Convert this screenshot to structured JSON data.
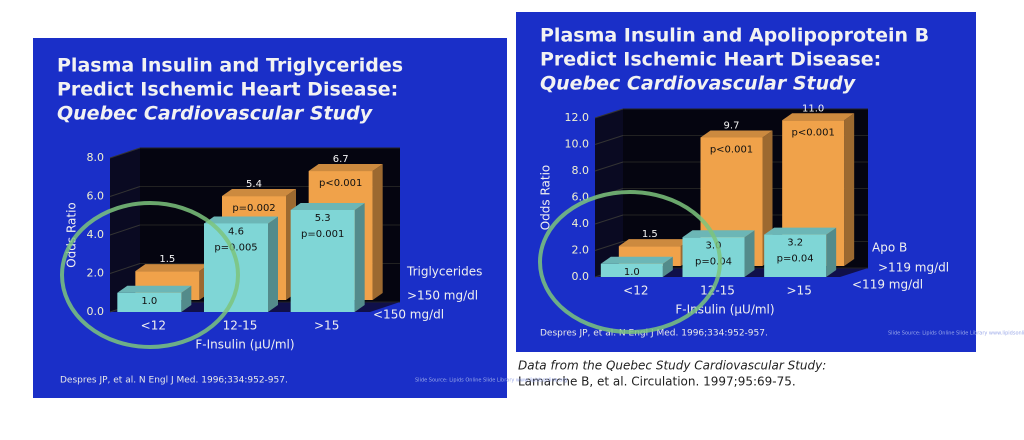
{
  "chart_data": [
    {
      "type": "bar",
      "title_lines": [
        "Plasma Insulin and Triglycerides",
        "Predict Ischemic Heart Disease:"
      ],
      "subtitle": "Quebec Cardiovascular Study",
      "categories": [
        "<12",
        "12-15",
        ">15"
      ],
      "x_label": "F-Insulin (µU/ml)",
      "y_label": "Odds Ratio",
      "ylim": [
        0,
        8
      ],
      "yticks": [
        {
          "value": 0,
          "label": "0.0"
        },
        {
          "value": 2,
          "label": "2.0"
        },
        {
          "value": 4,
          "label": "4.0"
        },
        {
          "value": 6,
          "label": "6.0"
        },
        {
          "value": 8,
          "label": "8.0"
        }
      ],
      "legend_title": "Triglycerides",
      "series": [
        {
          "name": ">150 mg/dl",
          "color": "#f0a24a",
          "values": [
            1.5,
            5.4,
            6.7
          ],
          "value_labels": [
            "1.5",
            "5.4",
            "6.7"
          ],
          "p_values": [
            null,
            "p=0.002",
            "p<0.001"
          ]
        },
        {
          "name": "<150 mg/dl",
          "color": "#7fd6d6",
          "values": [
            1.0,
            4.6,
            5.3
          ],
          "value_labels": [
            "1.0",
            "4.6",
            "5.3"
          ],
          "p_values": [
            null,
            "p=0.005",
            "p=0.001"
          ]
        }
      ],
      "citation": "Despres JP, et al. N Engl J Med. 1996;334:952-957.",
      "source": "Slide Source: Lipids Online Slide Library www.lipidsonline.org"
    },
    {
      "type": "bar",
      "title_lines": [
        "Plasma Insulin and Apolipoprotein B",
        "Predict Ischemic Heart Disease:"
      ],
      "subtitle": "Quebec Cardiovascular Study",
      "categories": [
        "<12",
        "12-15",
        ">15"
      ],
      "x_label": "F-Insulin (µU/ml)",
      "y_label": "Odds Ratio",
      "ylim": [
        0,
        12
      ],
      "yticks": [
        {
          "value": 0,
          "label": "0.0"
        },
        {
          "value": 2,
          "label": "2.0"
        },
        {
          "value": 4,
          "label": "4.0"
        },
        {
          "value": 6,
          "label": "6.0"
        },
        {
          "value": 8,
          "label": "8.0"
        },
        {
          "value": 10,
          "label": "10.0"
        },
        {
          "value": 12,
          "label": "12.0"
        }
      ],
      "legend_title": "Apo B",
      "series": [
        {
          "name": ">119 mg/dl",
          "color": "#f0a24a",
          "values": [
            1.5,
            9.7,
            11.0
          ],
          "value_labels": [
            "1.5",
            "9.7",
            "11.0"
          ],
          "p_values": [
            null,
            "p<0.001",
            "p<0.001"
          ]
        },
        {
          "name": "<119 mg/dl",
          "color": "#7fd6d6",
          "values": [
            1.0,
            3.0,
            3.2
          ],
          "value_labels": [
            "1.0",
            "3.0",
            "3.2"
          ],
          "p_values": [
            null,
            "p=0.04",
            "p=0.04"
          ]
        }
      ],
      "citation": "Despres JP, et al. N Engl J Med. 1996;334:952-957.",
      "source": "Slide Source: Lipids Online Slide Library www.lipidsonline.org"
    }
  ],
  "caption": [
    "Data from the Quebec Study Cardiovascular Study:",
    "Lamarche B, et al. Circulation. 1997;95:69-75."
  ]
}
